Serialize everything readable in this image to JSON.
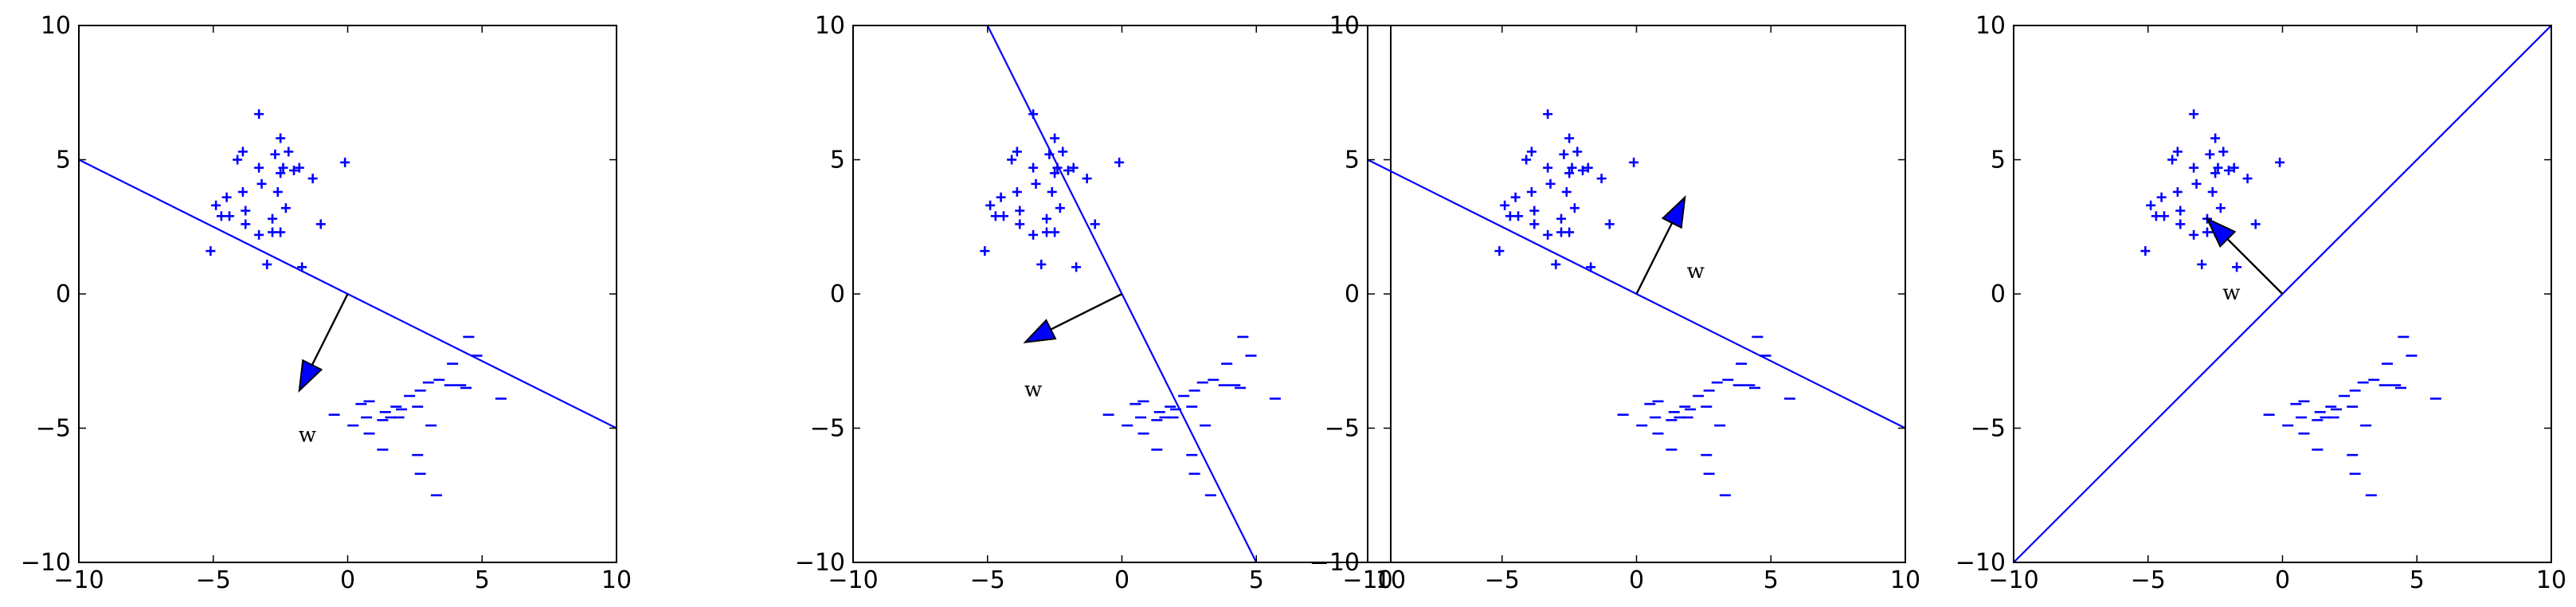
{
  "chart_data": [
    {
      "type": "scatter",
      "xlim": [
        -10,
        10
      ],
      "ylim": [
        -10,
        10
      ],
      "xticks": [
        -10,
        -5,
        0,
        5,
        10
      ],
      "yticks": [
        -10,
        -5,
        0,
        5,
        10
      ],
      "grid": false,
      "boundary_line": [
        [
          -10,
          5
        ],
        [
          10,
          -5
        ]
      ],
      "weight_vector": {
        "from": [
          0,
          0
        ],
        "to": [
          -1.8,
          -3.6
        ],
        "label": "w",
        "label_pos": [
          -1.5,
          -5.3
        ]
      }
    },
    {
      "type": "scatter",
      "xlim": [
        -10,
        10
      ],
      "ylim": [
        -10,
        10
      ],
      "xticks": [
        -10,
        -5,
        0,
        5,
        10
      ],
      "yticks": [
        -10,
        -5,
        0,
        5,
        10
      ],
      "grid": false,
      "boundary_line": [
        [
          -5,
          10
        ],
        [
          5,
          -10
        ]
      ],
      "weight_vector": {
        "from": [
          0,
          0
        ],
        "to": [
          -3.6,
          -1.8
        ],
        "label": "w",
        "label_pos": [
          -3.3,
          -3.6
        ]
      }
    },
    {
      "type": "scatter",
      "xlim": [
        -10,
        10
      ],
      "ylim": [
        -10,
        10
      ],
      "xticks": [
        -10,
        -5,
        0,
        5,
        10
      ],
      "yticks": [
        -10,
        -5,
        0,
        5,
        10
      ],
      "grid": false,
      "boundary_line": [
        [
          -10,
          5
        ],
        [
          10,
          -5
        ]
      ],
      "weight_vector": {
        "from": [
          0,
          0
        ],
        "to": [
          1.8,
          3.6
        ],
        "label": "w",
        "label_pos": [
          2.2,
          0.8
        ]
      }
    },
    {
      "type": "scatter",
      "xlim": [
        -10,
        10
      ],
      "ylim": [
        -10,
        10
      ],
      "xticks": [
        -10,
        -5,
        0,
        5,
        10
      ],
      "yticks": [
        -10,
        -5,
        0,
        5,
        10
      ],
      "grid": false,
      "boundary_line": [
        [
          -10,
          -10
        ],
        [
          10,
          10
        ]
      ],
      "weight_vector": {
        "from": [
          0,
          0
        ],
        "to": [
          -2.8,
          2.8
        ],
        "label": "w",
        "label_pos": [
          -1.9,
          0.0
        ]
      }
    }
  ],
  "points": {
    "positive_symbol": "+",
    "negative_symbol": "–",
    "color": "#0000ff",
    "positive": [
      [
        -3.3,
        6.7
      ],
      [
        -2.5,
        5.8
      ],
      [
        -3.9,
        5.3
      ],
      [
        -2.2,
        5.3
      ],
      [
        -4.1,
        5.0
      ],
      [
        -2.7,
        5.2
      ],
      [
        -0.1,
        4.9
      ],
      [
        -2.4,
        4.7
      ],
      [
        -3.3,
        4.7
      ],
      [
        -1.8,
        4.7
      ],
      [
        -2.0,
        4.6
      ],
      [
        -2.5,
        4.5
      ],
      [
        -1.3,
        4.3
      ],
      [
        -3.2,
        4.1
      ],
      [
        -3.9,
        3.8
      ],
      [
        -4.5,
        3.6
      ],
      [
        -2.6,
        3.8
      ],
      [
        -4.9,
        3.3
      ],
      [
        -2.3,
        3.2
      ],
      [
        -4.7,
        2.9
      ],
      [
        -3.8,
        3.1
      ],
      [
        -4.4,
        2.9
      ],
      [
        -2.8,
        2.8
      ],
      [
        -3.8,
        2.6
      ],
      [
        -1.0,
        2.6
      ],
      [
        -2.8,
        2.3
      ],
      [
        -3.3,
        2.2
      ],
      [
        -2.5,
        2.3
      ],
      [
        -5.1,
        1.6
      ],
      [
        -3.0,
        1.1
      ],
      [
        -1.7,
        1.0
      ]
    ],
    "negative": [
      [
        4.5,
        -1.6
      ],
      [
        4.8,
        -2.3
      ],
      [
        3.9,
        -2.6
      ],
      [
        3.4,
        -3.2
      ],
      [
        3.8,
        -3.4
      ],
      [
        4.2,
        -3.4
      ],
      [
        4.4,
        -3.5
      ],
      [
        3.0,
        -3.3
      ],
      [
        2.7,
        -3.6
      ],
      [
        2.3,
        -3.8
      ],
      [
        5.7,
        -3.9
      ],
      [
        0.8,
        -4.0
      ],
      [
        0.5,
        -4.1
      ],
      [
        1.8,
        -4.2
      ],
      [
        2.0,
        -4.3
      ],
      [
        1.4,
        -4.4
      ],
      [
        2.6,
        -4.2
      ],
      [
        -0.5,
        -4.5
      ],
      [
        0.7,
        -4.6
      ],
      [
        1.6,
        -4.6
      ],
      [
        1.9,
        -4.6
      ],
      [
        1.3,
        -4.7
      ],
      [
        0.2,
        -4.9
      ],
      [
        0.8,
        -5.2
      ],
      [
        3.1,
        -4.9
      ],
      [
        1.3,
        -5.8
      ],
      [
        2.6,
        -6.0
      ],
      [
        2.7,
        -6.7
      ],
      [
        3.3,
        -7.5
      ]
    ]
  }
}
